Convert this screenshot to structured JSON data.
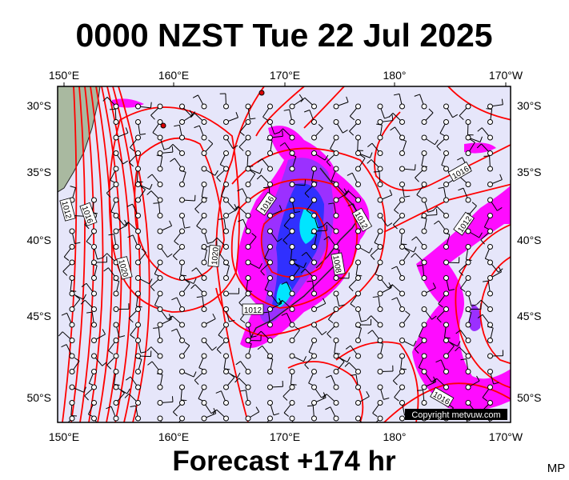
{
  "title": "0000 NZST Tue 22 Jul 2025",
  "footer": "Forecast +174 hr",
  "initials": "MP",
  "copyright": "Copyright metvuw.com",
  "lon_labels": [
    "150°E",
    "160°E",
    "170°E",
    "180°",
    "170°W"
  ],
  "lat_labels": [
    "30°S",
    "35°S",
    "40°S",
    "45°S",
    "50°S"
  ],
  "isobar_labels": [
    "1012",
    "1016",
    "1020",
    "1020",
    "1016",
    "1012",
    "1008",
    "1012",
    "1016",
    "1012",
    "1016"
  ]
}
